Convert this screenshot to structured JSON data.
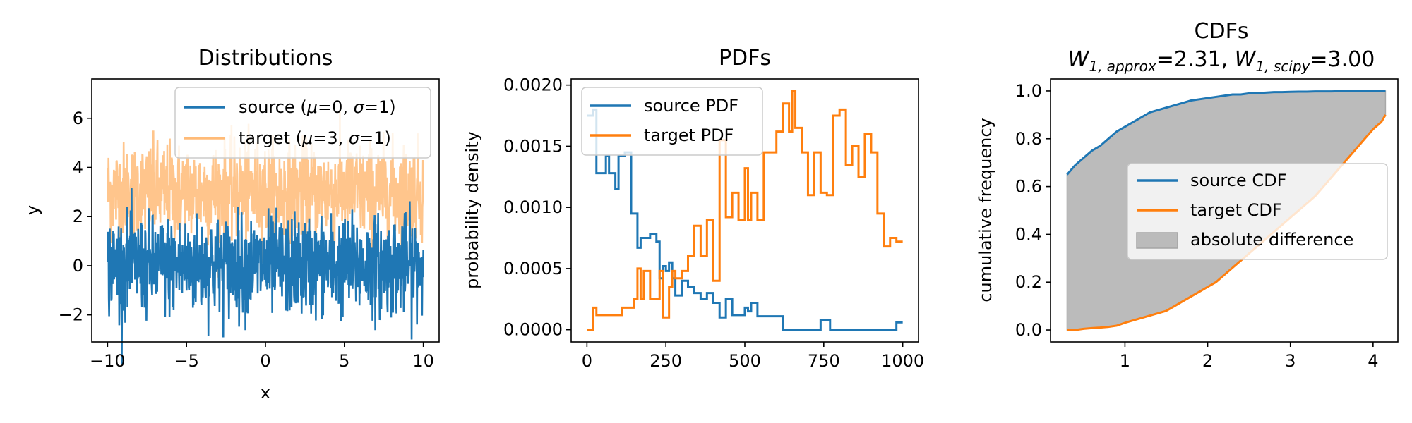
{
  "chart_data": [
    {
      "type": "line",
      "title": "Distributions",
      "xlabel": "x",
      "ylabel": "y",
      "xlim": [
        -11,
        11
      ],
      "ylim": [
        -3.1,
        7.6
      ],
      "xticks": [
        -10,
        -5,
        0,
        5,
        10
      ],
      "xtick_labels": [
        "−10",
        "−5",
        "0",
        "5",
        "10"
      ],
      "yticks": [
        -2,
        0,
        2,
        4,
        6
      ],
      "ytick_labels": [
        "−2",
        "0",
        "2",
        "4",
        "6"
      ],
      "legend_position": "top-right",
      "series": [
        {
          "name": "source (μ=0, σ=1)",
          "legend_main": "source (",
          "legend_mu": "μ",
          "legend_mid": "=0, ",
          "legend_sigma": "σ",
          "legend_end": "=1)",
          "color": "#1f77b4",
          "mean": 0,
          "sd": 1,
          "x_range": [
            -10,
            10
          ],
          "n_points": 1000
        },
        {
          "name": "target (μ=3, σ=1)",
          "legend_main": "target (",
          "legend_mu": "μ",
          "legend_mid": "=3, ",
          "legend_sigma": "σ",
          "legend_end": "=1)",
          "color": "#ffbb78",
          "mean": 3,
          "sd": 1,
          "x_range": [
            -10,
            10
          ],
          "n_points": 1000,
          "opacity": 0.6
        }
      ]
    },
    {
      "type": "line",
      "title": "PDFs",
      "xlabel": "",
      "ylabel": "probability density",
      "xlim": [
        -50,
        1050
      ],
      "ylim": [
        -0.0001,
        0.00205
      ],
      "xticks": [
        0,
        250,
        500,
        750,
        1000
      ],
      "xtick_labels": [
        "0",
        "250",
        "500",
        "750",
        "1000"
      ],
      "yticks": [
        0.0,
        0.0005,
        0.001,
        0.0015,
        0.002
      ],
      "ytick_labels": [
        "0.0000",
        "0.0005",
        "0.0010",
        "0.0015",
        "0.0020"
      ],
      "legend_position": "top-left",
      "step": true,
      "series": [
        {
          "name": "source PDF",
          "color": "#1f77b4",
          "x": [
            0,
            20,
            30,
            60,
            70,
            90,
            100,
            110,
            120,
            140,
            160,
            170,
            200,
            220,
            230,
            240,
            250,
            260,
            270,
            280,
            300,
            320,
            340,
            360,
            380,
            400,
            420,
            440,
            460,
            490,
            500,
            510,
            520,
            540,
            570,
            620,
            640,
            660,
            700,
            740,
            770,
            790,
            810,
            830,
            880,
            920,
            940,
            960,
            980,
            1000
          ],
          "y": [
            0.00175,
            0.0018,
            0.00128,
            0.00142,
            0.00128,
            0.00115,
            0.00142,
            0.00142,
            0.00145,
            0.00095,
            0.00067,
            0.00075,
            0.00078,
            0.00072,
            0.00042,
            0.00052,
            0.00048,
            0.00055,
            0.00042,
            0.00028,
            0.0004,
            0.00035,
            0.0003,
            0.00025,
            0.0003,
            0.00022,
            0.0001,
            0.00025,
            0.00012,
            0.00012,
            0.00018,
            0.00015,
            0.00022,
            0.00011,
            0.00011,
            0.0,
            0.0,
            0.0,
            0.0,
            8e-05,
            0.0,
            0.0,
            0.0,
            0.0,
            0.0,
            0.0,
            0.0,
            0.0,
            6e-05,
            6e-05
          ]
        },
        {
          "name": "target PDF",
          "color": "#ff7f0e",
          "x": [
            0,
            20,
            30,
            60,
            90,
            110,
            130,
            150,
            160,
            170,
            180,
            190,
            200,
            230,
            240,
            260,
            270,
            280,
            300,
            320,
            340,
            360,
            380,
            400,
            420,
            440,
            460,
            480,
            500,
            510,
            520,
            540,
            560,
            580,
            600,
            620,
            640,
            650,
            660,
            680,
            700,
            720,
            740,
            760,
            780,
            800,
            820,
            840,
            860,
            880,
            900,
            920,
            940,
            960,
            980,
            1000
          ],
          "y": [
            0.0,
            0.00018,
            0.00012,
            0.00012,
            0.00012,
            0.00018,
            0.00018,
            0.00025,
            0.0005,
            0.00025,
            0.00048,
            0.00048,
            0.00025,
            0.00048,
            0.0001,
            0.00035,
            0.00048,
            0.00042,
            0.00048,
            0.0006,
            0.00085,
            0.0006,
            0.0009,
            0.0004,
            0.00155,
            0.00092,
            0.00112,
            0.0009,
            0.00132,
            0.0009,
            0.00112,
            0.0009,
            0.00145,
            0.00145,
            0.00162,
            0.00185,
            0.00162,
            0.00195,
            0.00165,
            0.00145,
            0.0011,
            0.00145,
            0.00112,
            0.0011,
            0.00175,
            0.0018,
            0.00135,
            0.0015,
            0.00125,
            0.0016,
            0.00145,
            0.00095,
            0.00068,
            0.00075,
            0.00072,
            0.00072
          ]
        }
      ]
    },
    {
      "type": "area",
      "title_line1": "CDFs",
      "title_w1_letter": "W",
      "title_w1_sub": "1, approx",
      "title_w1_value": "=2.31, ",
      "title_w2_letter": "W",
      "title_w2_sub": "1, scipy",
      "title_w2_value": "=3.00",
      "xlabel": "",
      "ylabel": "cumulative frequency",
      "xlim": [
        0.1,
        4.3
      ],
      "ylim": [
        -0.05,
        1.05
      ],
      "xticks": [
        1,
        2,
        3,
        4
      ],
      "xtick_labels": [
        "1",
        "2",
        "3",
        "4"
      ],
      "yticks": [
        0.0,
        0.2,
        0.4,
        0.6,
        0.8,
        1.0
      ],
      "ytick_labels": [
        "0.0",
        "0.2",
        "0.4",
        "0.6",
        "0.8",
        "1.0"
      ],
      "legend_position": "center-right",
      "fill_color": "#bbbbbb",
      "fill_label": "absolute difference",
      "x": [
        0.3,
        0.4,
        0.5,
        0.6,
        0.7,
        0.8,
        0.9,
        1.0,
        1.1,
        1.2,
        1.3,
        1.4,
        1.5,
        1.6,
        1.7,
        1.8,
        1.9,
        2.0,
        2.1,
        2.2,
        2.3,
        2.4,
        2.5,
        2.6,
        2.7,
        2.8,
        2.9,
        3.0,
        3.1,
        3.2,
        3.3,
        3.4,
        3.5,
        3.6,
        3.7,
        3.8,
        3.9,
        4.0,
        4.1,
        4.15
      ],
      "series": [
        {
          "name": "source CDF",
          "color": "#1f77b4",
          "values": [
            0.65,
            0.69,
            0.72,
            0.75,
            0.77,
            0.8,
            0.83,
            0.85,
            0.87,
            0.89,
            0.91,
            0.92,
            0.93,
            0.94,
            0.95,
            0.96,
            0.965,
            0.97,
            0.975,
            0.98,
            0.985,
            0.985,
            0.99,
            0.99,
            0.993,
            0.995,
            0.995,
            0.996,
            0.997,
            0.997,
            0.998,
            0.998,
            0.998,
            0.999,
            0.999,
            0.999,
            1.0,
            1.0,
            1.0,
            1.0
          ]
        },
        {
          "name": "target CDF",
          "color": "#ff7f0e",
          "values": [
            0.0,
            0.0,
            0.005,
            0.008,
            0.01,
            0.013,
            0.018,
            0.03,
            0.04,
            0.05,
            0.06,
            0.07,
            0.08,
            0.1,
            0.12,
            0.14,
            0.16,
            0.18,
            0.2,
            0.23,
            0.26,
            0.29,
            0.32,
            0.35,
            0.38,
            0.41,
            0.44,
            0.47,
            0.5,
            0.53,
            0.56,
            0.6,
            0.64,
            0.68,
            0.72,
            0.76,
            0.8,
            0.84,
            0.87,
            0.9
          ]
        }
      ]
    }
  ]
}
